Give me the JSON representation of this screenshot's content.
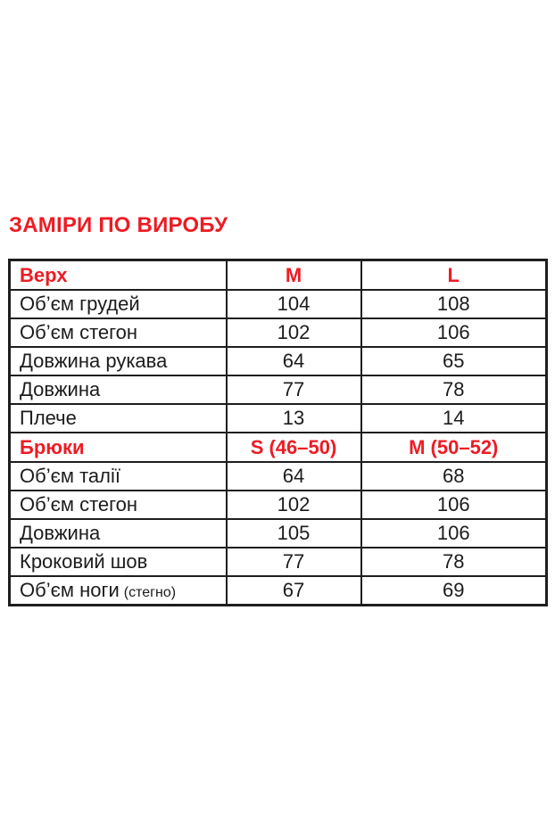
{
  "colors": {
    "accent_red": "#ed1c24",
    "text": "#1c1c1c",
    "border": "#1e1e1e",
    "background": "#ffffff"
  },
  "title": "ЗАМІРИ ПО ВИРОБУ",
  "size_table": {
    "sections": [
      {
        "name": "top-garment",
        "header": {
          "label": "Верх",
          "size1": "M",
          "size2": "L"
        },
        "rows": [
          {
            "label": "Об’єм грудей",
            "size1": "104",
            "size2": "108"
          },
          {
            "label": "Об’єм стегон",
            "size1": "102",
            "size2": "106"
          },
          {
            "label": "Довжина рукава",
            "size1": "64",
            "size2": "65"
          },
          {
            "label": "Довжина",
            "size1": "77",
            "size2": "78"
          },
          {
            "label": "Плече",
            "size1": "13",
            "size2": "14"
          }
        ]
      },
      {
        "name": "pants",
        "header": {
          "label": "Брюки",
          "size1": "S (46–50)",
          "size2": "M (50–52)"
        },
        "rows": [
          {
            "label": "Об’єм талії",
            "size1": "64",
            "size2": "68"
          },
          {
            "label": "Об’єм стегон",
            "size1": "102",
            "size2": "106"
          },
          {
            "label": "Довжина",
            "size1": "105",
            "size2": "106"
          },
          {
            "label": "Кроковий шов",
            "size1": "77",
            "size2": "78"
          },
          {
            "label": "Об’єм ноги",
            "label_note": "(стегно)",
            "size1": "67",
            "size2": "69"
          }
        ]
      }
    ]
  }
}
